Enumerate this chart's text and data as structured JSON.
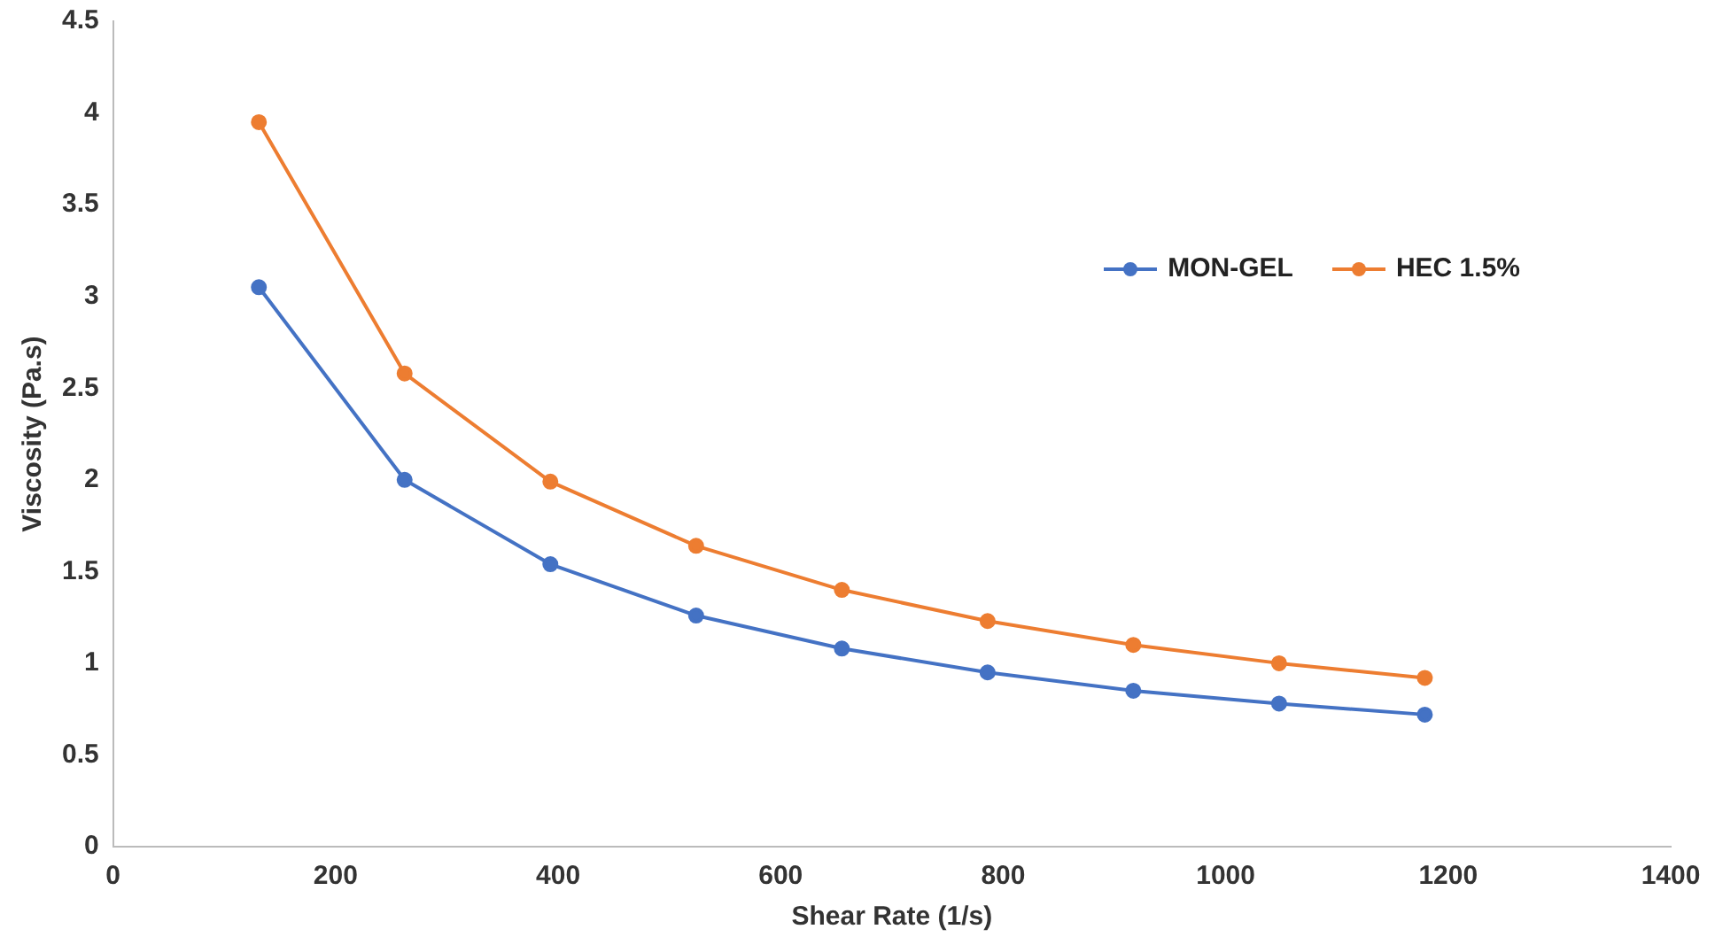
{
  "chart_data": {
    "type": "line",
    "xlabel": "Shear Rate (1/s)",
    "ylabel": "Viscosity (Pa.s)",
    "x": [
      131,
      262,
      393,
      524,
      655,
      786,
      917,
      1048,
      1179
    ],
    "series": [
      {
        "name": "MON-GEL",
        "color": "#4472c4",
        "values": [
          3.05,
          2.0,
          1.54,
          1.26,
          1.08,
          0.95,
          0.85,
          0.78,
          0.72
        ]
      },
      {
        "name": "HEC 1.5%",
        "color": "#ed7d31",
        "values": [
          3.95,
          2.58,
          1.99,
          1.64,
          1.4,
          1.23,
          1.1,
          1.0,
          0.92
        ]
      }
    ],
    "xlim": [
      0,
      1400
    ],
    "xticks": [
      0,
      200,
      400,
      600,
      800,
      1000,
      1200,
      1400
    ],
    "ylim": [
      0,
      4.5
    ],
    "yticks": [
      0,
      0.5,
      1,
      1.5,
      2,
      2.5,
      3,
      3.5,
      4,
      4.5
    ],
    "grid": false,
    "legend": "top right",
    "marker": "circle",
    "line_style": "solid"
  }
}
